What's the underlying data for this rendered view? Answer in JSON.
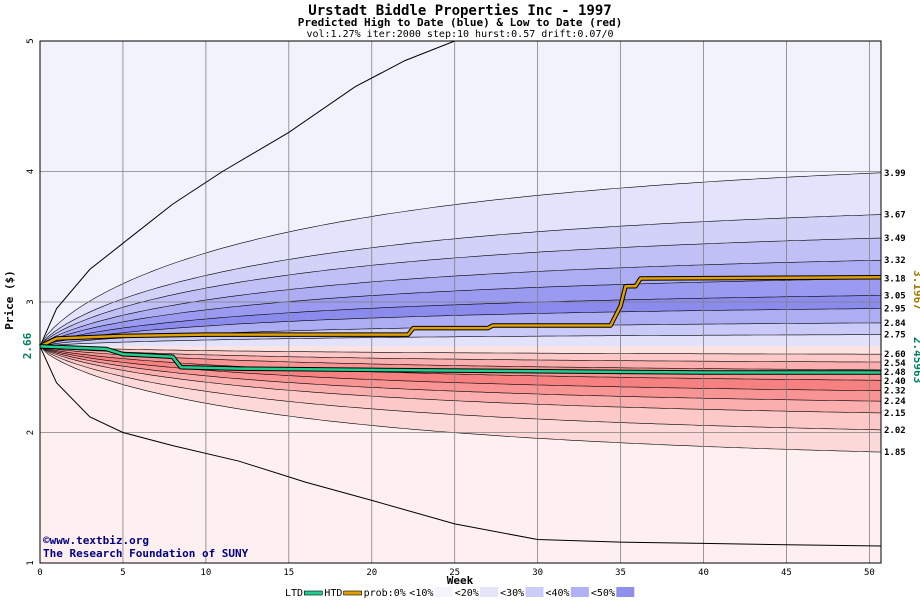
{
  "chart_data": {
    "type": "area",
    "title": "Urstadt Biddle Properties Inc - 1997",
    "subtitle": "Predicted High to Date (blue) &  Low to Date (red)",
    "params": "vol:1.27% iter:2000 step:10 hurst:0.57 drift:0.07/0",
    "xlabel": "Week",
    "ylabel": "Price ($)",
    "xlim": [
      0,
      50.7
    ],
    "ylim": [
      1,
      5
    ],
    "xticks": [
      "0",
      "5",
      "10",
      "15",
      "20",
      "25",
      "30",
      "35",
      "40",
      "45",
      "50"
    ],
    "yticks": [
      "1",
      "2",
      "3",
      "4",
      "5"
    ],
    "grid": true,
    "start_price": 2.66,
    "start_price_label": "2.66",
    "high_end_label": "3.1967",
    "low_end_label": "2.45963",
    "upper_band_ends": [
      {
        "label": "3.99",
        "value": 3.99
      },
      {
        "label": "3.67",
        "value": 3.67
      },
      {
        "label": "3.49",
        "value": 3.49
      },
      {
        "label": "3.32",
        "value": 3.32
      },
      {
        "label": "3.18",
        "value": 3.18
      },
      {
        "label": "3.05",
        "value": 3.05
      },
      {
        "label": "2.95",
        "value": 2.95
      },
      {
        "label": "2.84",
        "value": 2.84
      },
      {
        "label": "2.75",
        "value": 2.75
      }
    ],
    "lower_band_ends": [
      {
        "label": "2.60",
        "value": 2.6
      },
      {
        "label": "2.54",
        "value": 2.54
      },
      {
        "label": "2.48",
        "value": 2.48
      },
      {
        "label": "2.40",
        "value": 2.4
      },
      {
        "label": "2.32",
        "value": 2.32
      },
      {
        "label": "2.24",
        "value": 2.24
      },
      {
        "label": "2.15",
        "value": 2.15
      },
      {
        "label": "2.02",
        "value": 2.02
      },
      {
        "label": "1.85",
        "value": 1.85
      }
    ],
    "outer_high_curve": [
      [
        0,
        2.66
      ],
      [
        1,
        2.95
      ],
      [
        3,
        3.25
      ],
      [
        5,
        3.45
      ],
      [
        8,
        3.75
      ],
      [
        11,
        4.0
      ],
      [
        15,
        4.3
      ],
      [
        19,
        4.65
      ],
      [
        22,
        4.85
      ],
      [
        25,
        5.0
      ]
    ],
    "outer_low_curve": [
      [
        0,
        2.66
      ],
      [
        1,
        2.38
      ],
      [
        3,
        2.12
      ],
      [
        5,
        2.0
      ],
      [
        8,
        1.9
      ],
      [
        12,
        1.78
      ],
      [
        16,
        1.62
      ],
      [
        20,
        1.48
      ],
      [
        25,
        1.3
      ],
      [
        30,
        1.18
      ],
      [
        35,
        1.16
      ],
      [
        40,
        1.15
      ],
      [
        45,
        1.14
      ],
      [
        50.7,
        1.13
      ]
    ],
    "series": [
      {
        "name": "HTD",
        "color": "#e0a000",
        "points": [
          [
            0,
            2.66
          ],
          [
            1,
            2.72
          ],
          [
            5,
            2.74
          ],
          [
            10,
            2.75
          ],
          [
            20,
            2.75
          ],
          [
            22.2,
            2.75
          ],
          [
            22.5,
            2.8
          ],
          [
            27,
            2.8
          ],
          [
            27.3,
            2.82
          ],
          [
            34.4,
            2.82
          ],
          [
            35,
            2.97
          ],
          [
            35.3,
            3.12
          ],
          [
            35.9,
            3.12
          ],
          [
            36.2,
            3.18
          ],
          [
            50.7,
            3.19
          ]
        ]
      },
      {
        "name": "LTD",
        "color": "#20d090",
        "points": [
          [
            0,
            2.66
          ],
          [
            4,
            2.64
          ],
          [
            5,
            2.6
          ],
          [
            8,
            2.58
          ],
          [
            8.5,
            2.5
          ],
          [
            12,
            2.49
          ],
          [
            20,
            2.48
          ],
          [
            30,
            2.47
          ],
          [
            40,
            2.46
          ],
          [
            50.7,
            2.46
          ]
        ]
      }
    ],
    "legend_items": [
      {
        "label": "LTD",
        "kind": "swatch-line",
        "color": "#20d090"
      },
      {
        "label": "HTD",
        "kind": "swatch-line",
        "color": "#e0a000"
      },
      {
        "label": "prob:0%",
        "kind": "text"
      },
      {
        "label": "<10%",
        "kind": "swatch",
        "color": "#f4f4ff"
      },
      {
        "label": "<20%",
        "kind": "swatch",
        "color": "#e4e4fa"
      },
      {
        "label": "<30%",
        "kind": "swatch",
        "color": "#ccccf8"
      },
      {
        "label": "<40%",
        "kind": "swatch",
        "color": "#b0b0f4"
      },
      {
        "label": "<50%",
        "kind": "swatch",
        "color": "#8f8fee"
      }
    ],
    "credit_line1": "©www.textbiz.org",
    "credit_line2": "The Research Foundation of SUNY",
    "colors": {
      "upper_fill": [
        "#f2f2fd",
        "#e3e3fb",
        "#d2d2f9",
        "#c0c0f6",
        "#adadf3",
        "#9a9af0",
        "#8b8bee",
        "#adadf3",
        "#cacaf8",
        "#e2e2fb"
      ],
      "lower_fill": [
        "#fde2e2",
        "#fcc8c8",
        "#faaeae",
        "#f89494",
        "#f78080",
        "#f89494",
        "#faaeae",
        "#fcc8c8",
        "#fdd8d8",
        "#fef0f0"
      ]
    }
  }
}
